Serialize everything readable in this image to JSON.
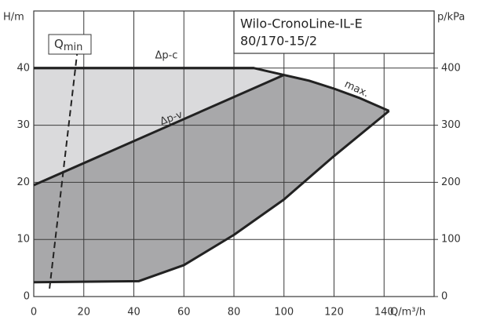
{
  "chart_data": {
    "type": "pump-curve",
    "title_lines": [
      "Wilo-CronoLine-IL-E",
      "80/170-15/2"
    ],
    "x_label": "Q/m³/h",
    "y_label": "H/m",
    "y2_label": "p/kPa",
    "xlim": [
      0,
      160
    ],
    "xticks": [
      0,
      20,
      40,
      60,
      80,
      100,
      120,
      140
    ],
    "ylim": [
      0,
      50
    ],
    "yticks": [
      0,
      10,
      20,
      30,
      40
    ],
    "y2lim": [
      0,
      500
    ],
    "y2ticks": [
      0,
      100,
      200,
      300,
      400
    ],
    "grid": true,
    "qmin_label": {
      "main": "Q",
      "sub": "min"
    },
    "region_colors": {
      "control": "#dadadc",
      "range": "#a8a8aa"
    },
    "series": [
      {
        "name": "max.",
        "color": "#222222",
        "x": [
          0,
          88,
          100,
          110,
          120,
          130,
          142
        ],
        "values": [
          40,
          40,
          38.8,
          37.8,
          36.4,
          34.8,
          32.5
        ]
      },
      {
        "name": "Δp-c",
        "color": "#222222",
        "x": [
          0,
          88
        ],
        "values": [
          40,
          40
        ]
      },
      {
        "name": "Δp-v",
        "color": "#222222",
        "x": [
          0,
          100
        ],
        "values": [
          19.5,
          38.8
        ]
      },
      {
        "color": "#222222",
        "x": [
          0,
          42,
          60,
          80,
          100,
          120,
          142
        ],
        "values": [
          2.5,
          2.7,
          5.5,
          10.8,
          17,
          24.6,
          32.5
        ]
      },
      {
        "color": "#222222",
        "dashed": true,
        "x": [
          6.3,
          17.9
        ],
        "values": [
          1.4,
          44.7
        ]
      }
    ]
  }
}
